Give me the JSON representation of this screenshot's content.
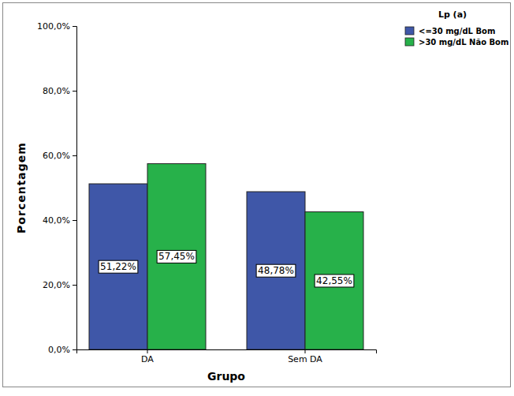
{
  "chart_data": {
    "type": "bar",
    "x_label": "Grupo",
    "y_label": "Porcentagem",
    "legend_title": "Lp (a)",
    "categories": [
      "DA",
      "Sem DA"
    ],
    "series": [
      {
        "name": "<=30 mg/dL Bom",
        "color": "#3f57a8",
        "values": [
          51.22,
          48.78
        ],
        "value_labels": [
          "51,22%",
          "48,78%"
        ]
      },
      {
        "name": ">30 mg/dL Não Bom",
        "color": "#27b14a",
        "values": [
          57.45,
          42.55
        ],
        "value_labels": [
          "57,45%",
          "42,55%"
        ]
      }
    ],
    "ylim": [
      0,
      100
    ],
    "yticks": [
      {
        "value": 0,
        "label": "0,0%"
      },
      {
        "value": 20,
        "label": "20,0%"
      },
      {
        "value": 40,
        "label": "40,0%"
      },
      {
        "value": 60,
        "label": "60,0%"
      },
      {
        "value": 80,
        "label": "80,0%"
      },
      {
        "value": 100,
        "label": "100,0%"
      }
    ],
    "grid": false,
    "legend": "top-right",
    "data_labels": true
  }
}
